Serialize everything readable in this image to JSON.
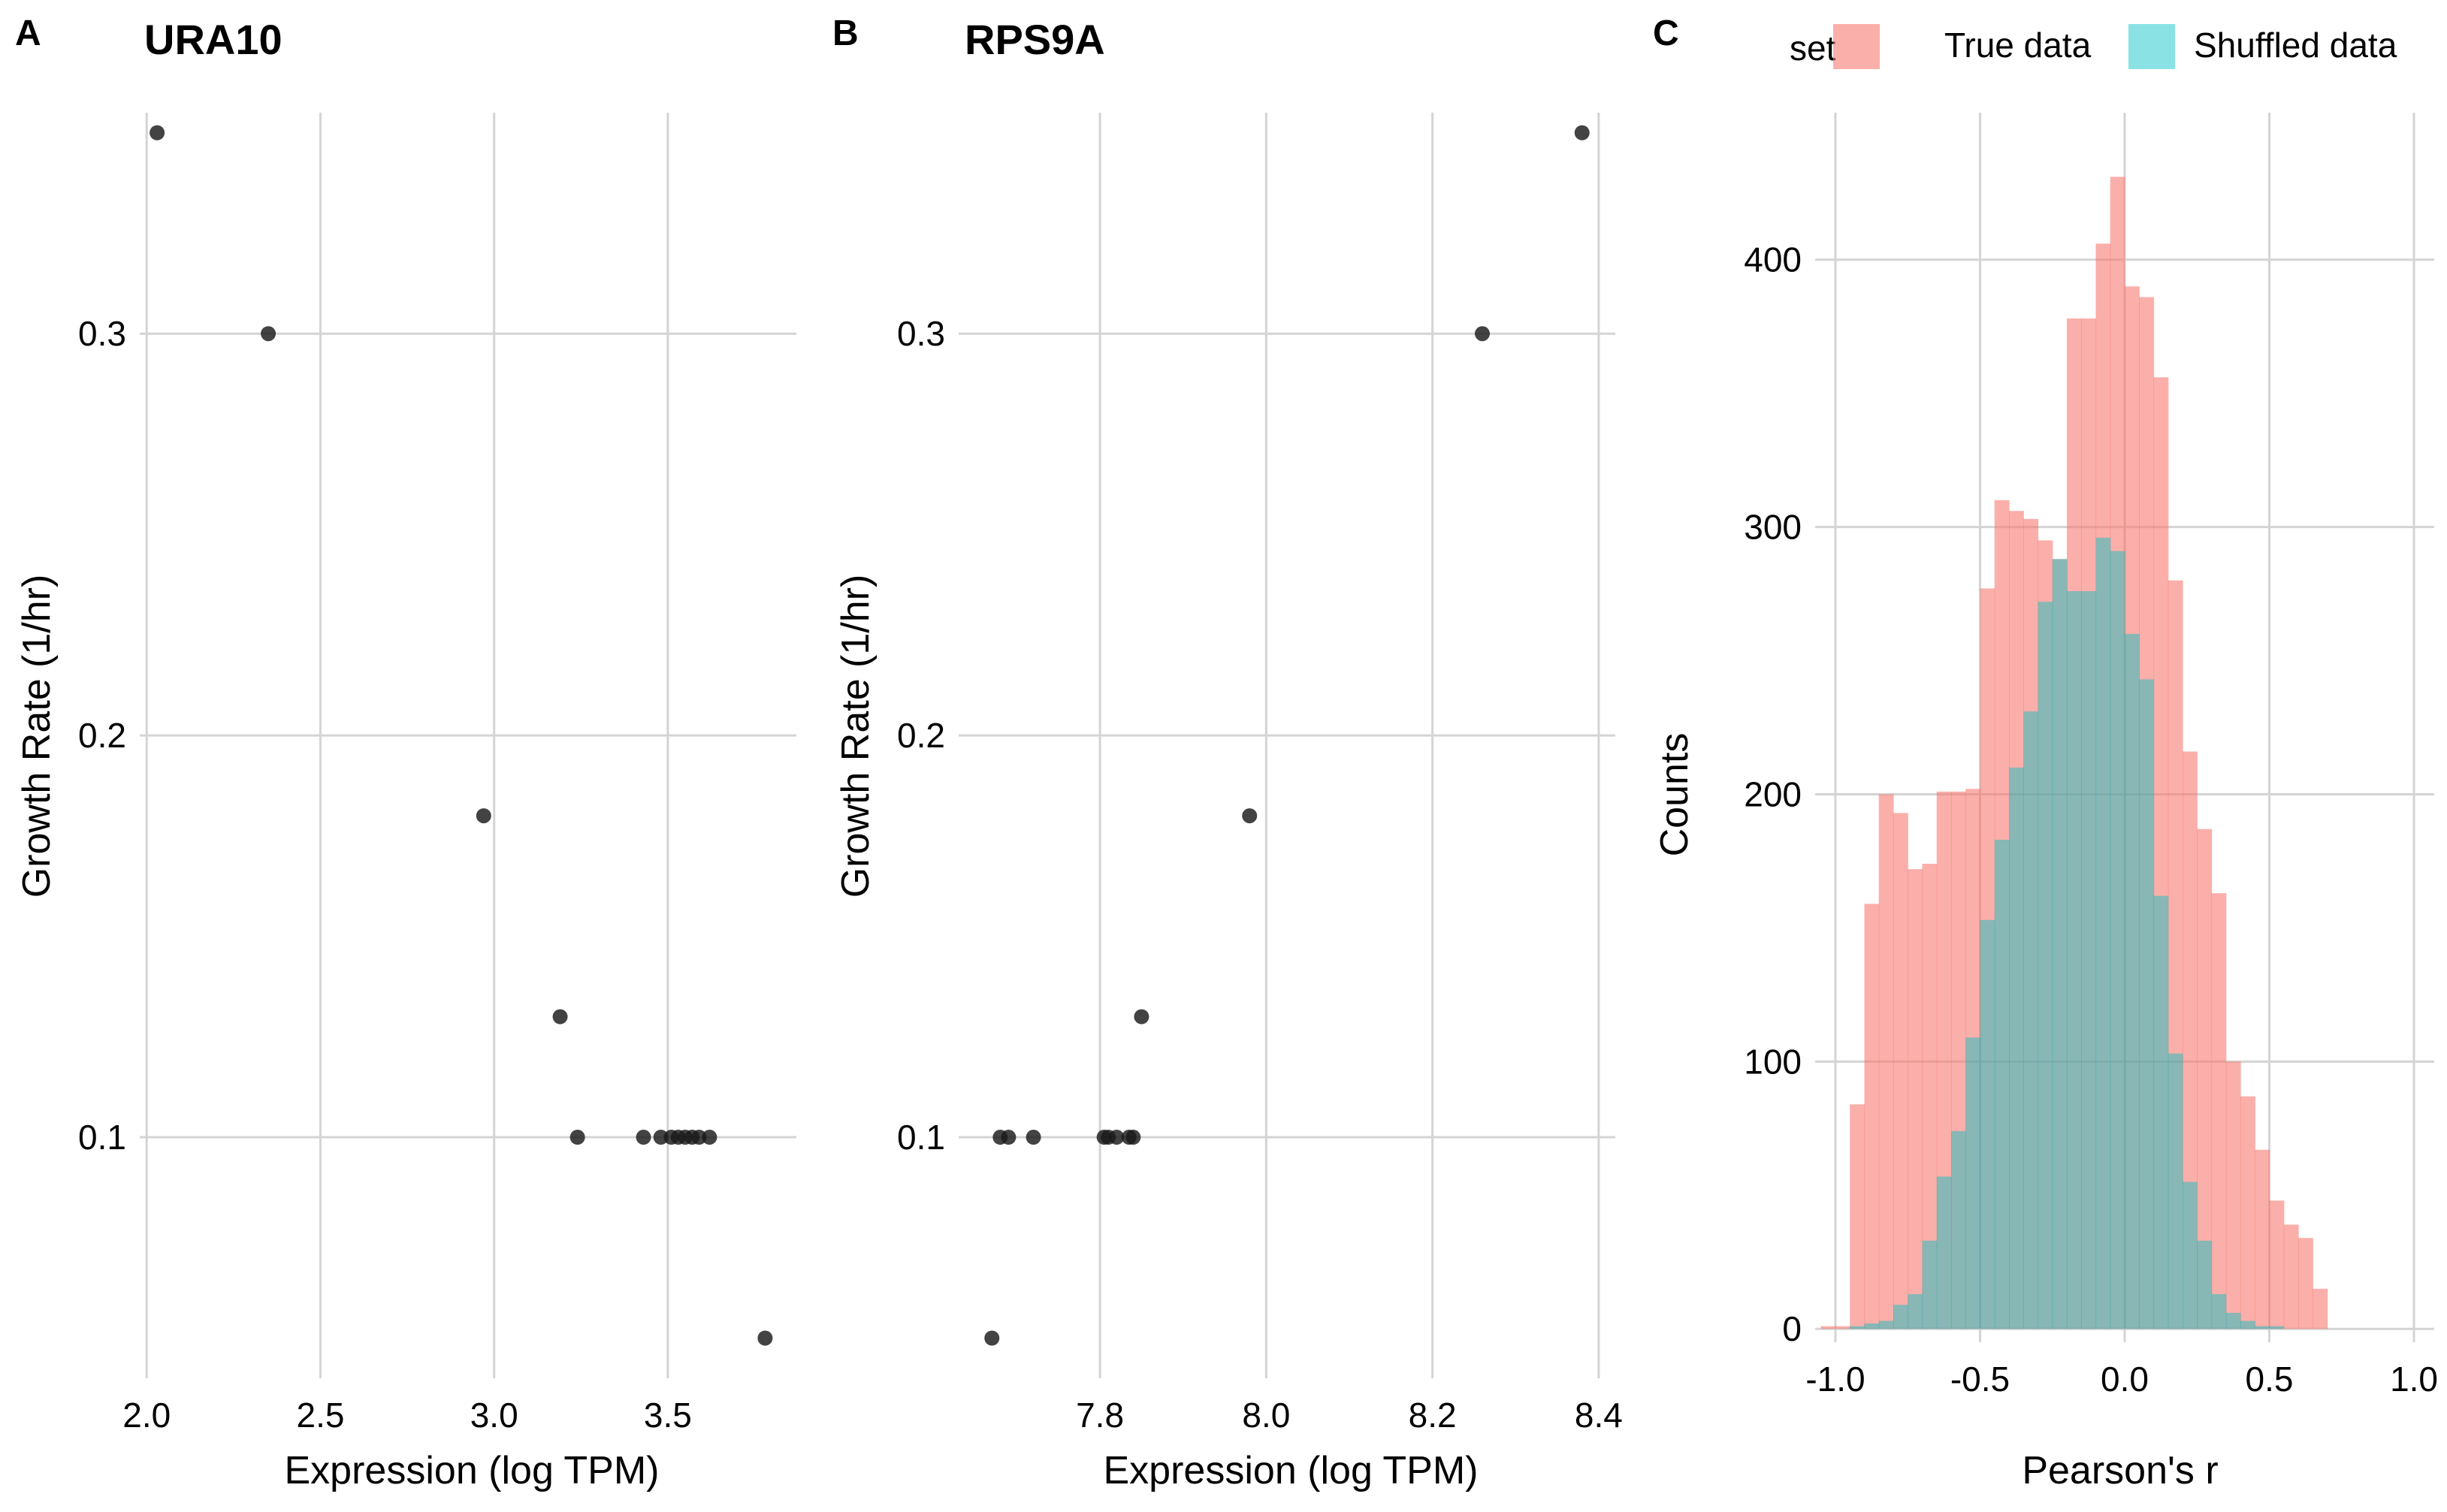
{
  "chart_data": [
    {
      "panel_label": "A",
      "type": "scatter",
      "title": "URA10",
      "xlabel": "Expression (log TPM)",
      "ylabel": "Growth Rate (1/hr)",
      "xlim": [
        1.98,
        3.87
      ],
      "ylim": [
        0.04,
        0.355
      ],
      "xticks": [
        2.0,
        2.5,
        3.0,
        3.5
      ],
      "xtick_labels": [
        "2.0",
        "2.5",
        "3.0",
        "3.5"
      ],
      "yticks": [
        0.1,
        0.2,
        0.3
      ],
      "ytick_labels": [
        "0.1",
        "0.2",
        "0.3"
      ],
      "grid": true,
      "points": [
        {
          "x": 2.03,
          "y": 0.35
        },
        {
          "x": 2.35,
          "y": 0.3
        },
        {
          "x": 2.97,
          "y": 0.18
        },
        {
          "x": 3.19,
          "y": 0.13
        },
        {
          "x": 3.24,
          "y": 0.1
        },
        {
          "x": 3.43,
          "y": 0.1
        },
        {
          "x": 3.48,
          "y": 0.1
        },
        {
          "x": 3.51,
          "y": 0.1
        },
        {
          "x": 3.53,
          "y": 0.1
        },
        {
          "x": 3.55,
          "y": 0.1
        },
        {
          "x": 3.57,
          "y": 0.1
        },
        {
          "x": 3.59,
          "y": 0.1
        },
        {
          "x": 3.62,
          "y": 0.1
        },
        {
          "x": 3.78,
          "y": 0.05
        }
      ]
    },
    {
      "panel_label": "B",
      "type": "scatter",
      "title": "RPS9A",
      "xlabel": "Expression (log TPM)",
      "ylabel": "Growth Rate (1/hr)",
      "xlim": [
        7.63,
        8.42
      ],
      "ylim": [
        0.04,
        0.355
      ],
      "xticks": [
        7.8,
        8.0,
        8.2,
        8.4
      ],
      "xtick_labels": [
        "7.8",
        "8.0",
        "8.2",
        "8.4"
      ],
      "yticks": [
        0.1,
        0.2,
        0.3
      ],
      "ytick_labels": [
        "0.1",
        "0.2",
        "0.3"
      ],
      "grid": true,
      "points": [
        {
          "x": 7.68,
          "y": 0.1
        },
        {
          "x": 7.69,
          "y": 0.1
        },
        {
          "x": 7.72,
          "y": 0.1
        },
        {
          "x": 7.805,
          "y": 0.1
        },
        {
          "x": 7.81,
          "y": 0.1
        },
        {
          "x": 7.82,
          "y": 0.1
        },
        {
          "x": 7.835,
          "y": 0.1
        },
        {
          "x": 7.84,
          "y": 0.1
        },
        {
          "x": 7.85,
          "y": 0.13
        },
        {
          "x": 7.67,
          "y": 0.05
        },
        {
          "x": 7.98,
          "y": 0.18
        },
        {
          "x": 8.26,
          "y": 0.3
        },
        {
          "x": 8.38,
          "y": 0.35
        }
      ]
    },
    {
      "panel_label": "C",
      "type": "bar",
      "subtype": "histogram",
      "xlabel": "Pearson's r",
      "ylabel": "Counts",
      "xlim": [
        -1.07,
        1.07
      ],
      "ylim": [
        -5,
        455
      ],
      "xticks": [
        -1.0,
        -0.5,
        0.0,
        0.5,
        1.0
      ],
      "xtick_labels": [
        "-1.0",
        "-0.5",
        "0.0",
        "0.5",
        "1.0"
      ],
      "yticks": [
        0,
        100,
        200,
        300,
        400
      ],
      "ytick_labels": [
        "0",
        "100",
        "200",
        "300",
        "400"
      ],
      "grid": true,
      "legend": {
        "title": "set",
        "placement": "top"
      },
      "bin_start": -1.05,
      "bin_width": 0.05,
      "series": [
        {
          "name": "True data",
          "color": "#F8766D",
          "values": [
            1,
            1,
            84,
            159,
            200,
            193,
            172,
            174,
            201,
            201,
            202,
            277,
            310,
            306,
            303,
            295,
            288,
            378,
            378,
            406,
            431,
            390,
            386,
            356,
            280,
            216,
            187,
            163,
            100,
            87,
            67,
            48,
            39,
            34,
            15
          ]
        },
        {
          "name": "Shuffled data",
          "color": "#00BFC4",
          "values": [
            0,
            0,
            1,
            2,
            3,
            9,
            13,
            33,
            57,
            74,
            109,
            153,
            183,
            210,
            231,
            272,
            288,
            276,
            276,
            296,
            291,
            260,
            243,
            162,
            103,
            55,
            33,
            13,
            6,
            3,
            1,
            1,
            0,
            0,
            0
          ]
        }
      ]
    }
  ]
}
